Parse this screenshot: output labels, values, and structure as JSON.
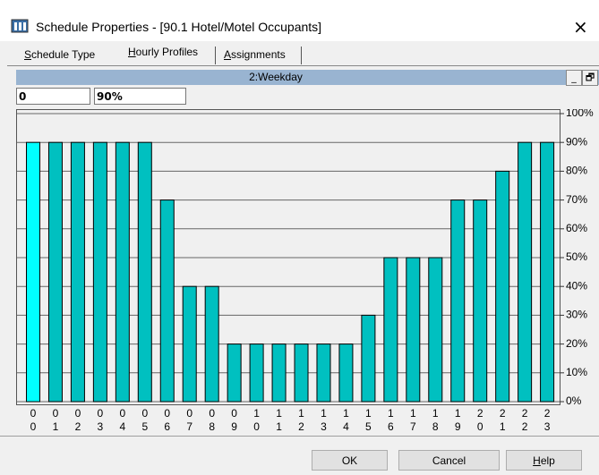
{
  "window": {
    "title": "Schedule Properties - [90.1 Hotel/Motel Occupants]",
    "close": "×"
  },
  "tabs": [
    "Schedule Type",
    "Hourly Profiles",
    "Assignments"
  ],
  "header": {
    "title": "2:Weekday",
    "minimize": "_",
    "restore": "🗗"
  },
  "inputs": [
    "0",
    "90%"
  ],
  "chart_data": {
    "type": "bar",
    "categories": [
      "00",
      "01",
      "02",
      "03",
      "04",
      "05",
      "06",
      "07",
      "08",
      "09",
      "10",
      "11",
      "12",
      "13",
      "14",
      "15",
      "16",
      "17",
      "18",
      "19",
      "20",
      "21",
      "22",
      "23"
    ],
    "values": [
      90,
      90,
      90,
      90,
      90,
      90,
      70,
      40,
      40,
      20,
      20,
      20,
      20,
      20,
      20,
      30,
      50,
      50,
      50,
      70,
      70,
      80,
      90,
      90
    ],
    "color": "#00c0c0",
    "selected_color": "#00ffff",
    "ylim": [
      0,
      100
    ],
    "yticks": [
      {
        "value": 0,
        "label": "0%"
      },
      {
        "value": 10,
        "label": "10%"
      },
      {
        "value": 20,
        "label": "20%"
      },
      {
        "value": 30,
        "label": "30%"
      },
      {
        "value": 40,
        "label": "40%"
      },
      {
        "value": 50,
        "label": "50%"
      },
      {
        "value": 60,
        "label": "60%"
      },
      {
        "value": 70,
        "label": "70%"
      },
      {
        "value": 80,
        "label": "80%"
      },
      {
        "value": 90,
        "label": "90%"
      },
      {
        "value": 100,
        "label": "100%"
      }
    ],
    "grid": true
  },
  "buttons": [
    "OK",
    "Cancel",
    "Help"
  ]
}
